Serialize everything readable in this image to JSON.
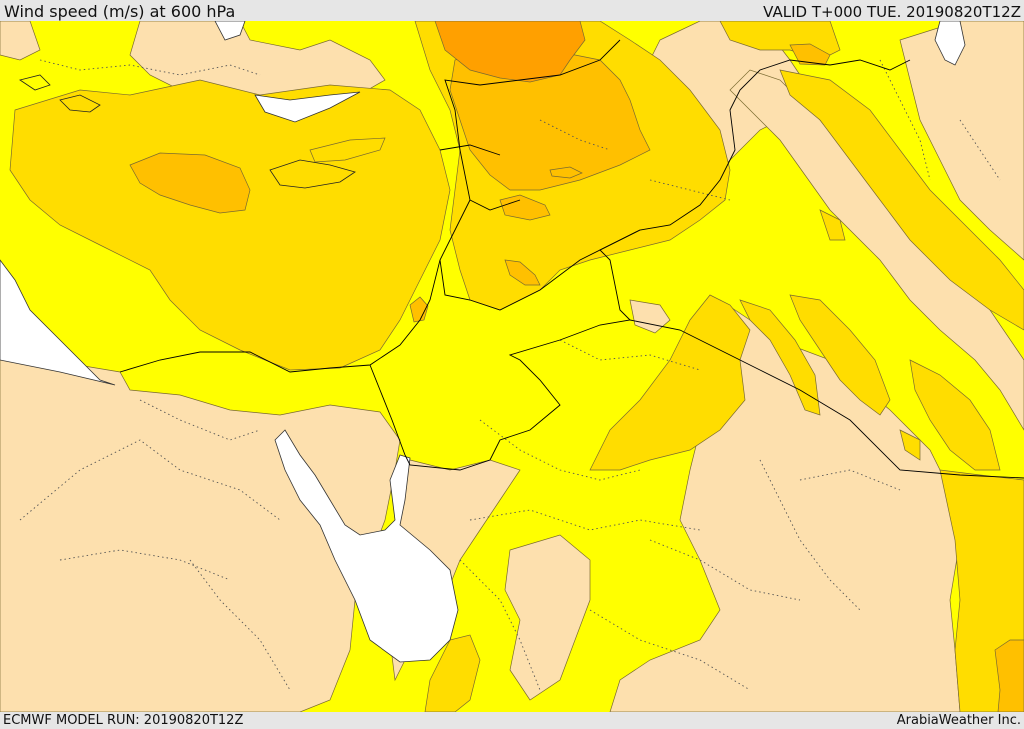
{
  "header": {
    "title": "Wind speed (m/s) at 600 hPa",
    "valid": "VALID T+000 TUE. 20190820T12Z"
  },
  "footer": {
    "model_run": "ECMWF MODEL RUN: 20190820T12Z",
    "credit": "ArabiaWeather Inc."
  },
  "colors": {
    "band_lowest": "#fde0ae",
    "band_low": "#ffff00",
    "band_mid": "#ffdd00",
    "band_high": "#ffc000",
    "band_highest": "#ffa000",
    "water": "#ffffff",
    "contour_line": "#7a6a30",
    "border_line": "#000000"
  }
}
